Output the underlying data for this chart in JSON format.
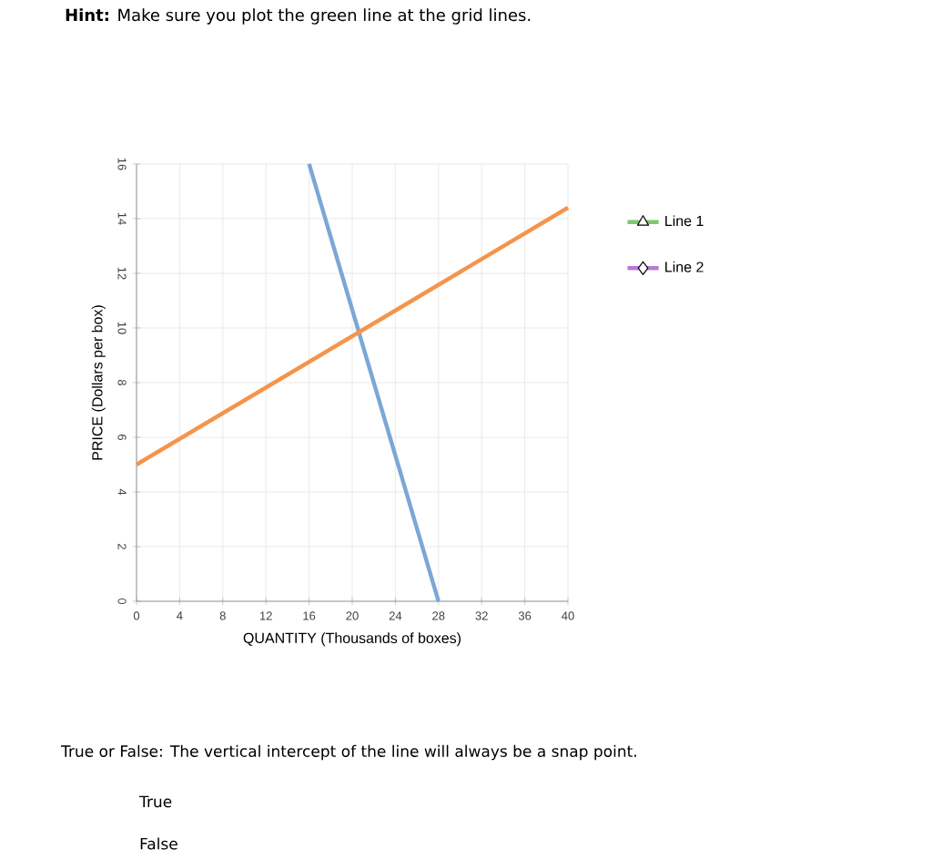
{
  "chart_data": {
    "type": "line",
    "title": "**Hint:** Make sure you plot the green line at the grid lines.",
    "xlabel": "QUANTITY (Thousands of boxes)",
    "ylabel": "PRICE (Dollars per box)",
    "series": [
      {
        "color": "#7ba7d4",
        "x": [
          16,
          28
        ],
        "values": [
          16,
          0
        ]
      },
      {
        "color": "#f5944a",
        "x": [
          0,
          40
        ],
        "values": [
          5,
          14.4
        ]
      },
      {
        "name": "Line 1",
        "color": "#7dc86a",
        "marker": "triangle"
      },
      {
        "name": "Line 2",
        "color": "#b57bd8",
        "marker": "diamond"
      }
    ],
    "xlim": [
      0,
      40
    ],
    "ylim": [
      0,
      16
    ],
    "xticks": [
      0,
      4,
      8,
      12,
      16,
      20,
      24,
      28,
      32,
      36,
      40
    ],
    "yticks": [
      0,
      2,
      4,
      6,
      8,
      10,
      12,
      14,
      16
    ],
    "grid": true,
    "legend": "right",
    "line_style": "solid",
    "annotations": [
      "True or False: The vertical intercept of the line will always be a snap point.",
      "True",
      "False"
    ]
  }
}
